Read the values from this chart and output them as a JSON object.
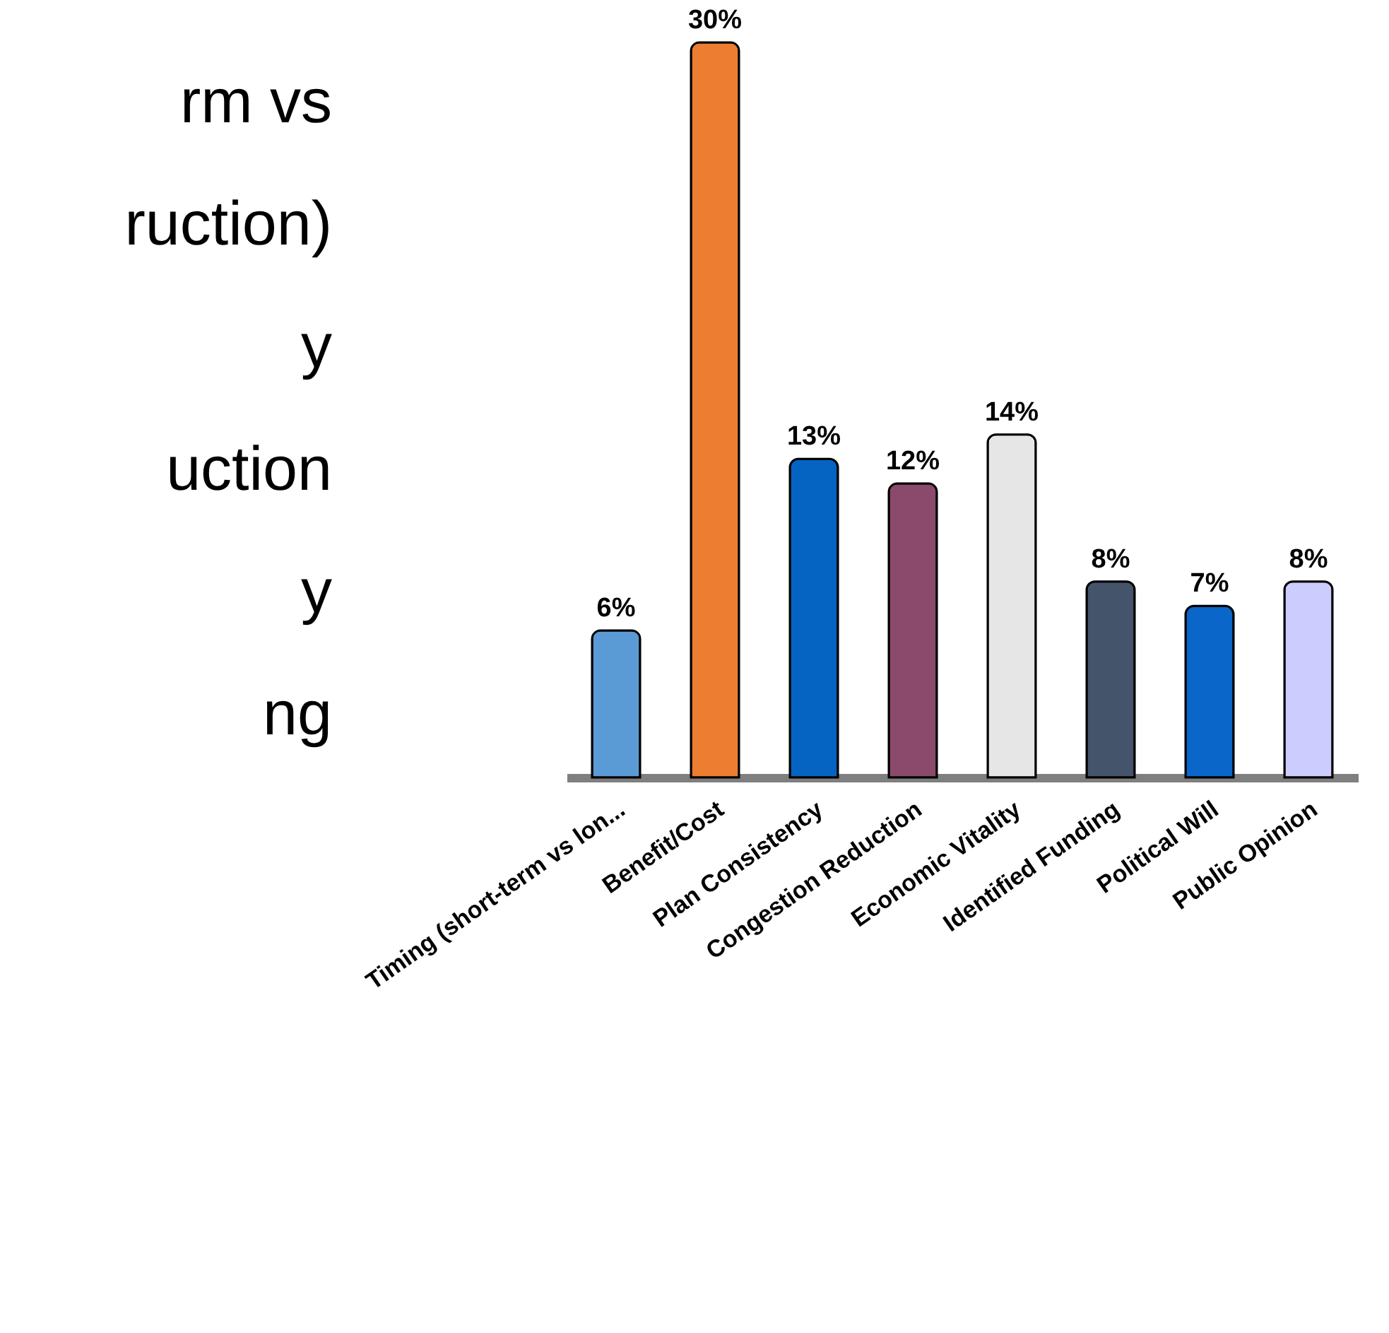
{
  "chart_data": {
    "type": "bar",
    "categories": [
      "Timing (short-term vs lon...",
      "Benefit/Cost",
      "Plan Consistency",
      "Congestion Reduction",
      "Economic Vitality",
      "Identified Funding",
      "Political Will",
      "Public Opinion"
    ],
    "values": [
      6,
      30,
      13,
      12,
      14,
      8,
      7,
      8
    ],
    "value_labels": [
      "6%",
      "30%",
      "13%",
      "12%",
      "14%",
      "8%",
      "7%",
      "8%"
    ],
    "colors": [
      "#5b9bd5",
      "#ed7d31",
      "#0563c1",
      "#8b4a6b",
      "#e6e6e6",
      "#44546a",
      "#0a66c8",
      "#ccccff"
    ],
    "annotations": [
      "rm vs",
      "ruction)",
      "y",
      "uction",
      "y",
      "ng"
    ],
    "grid": false
  }
}
